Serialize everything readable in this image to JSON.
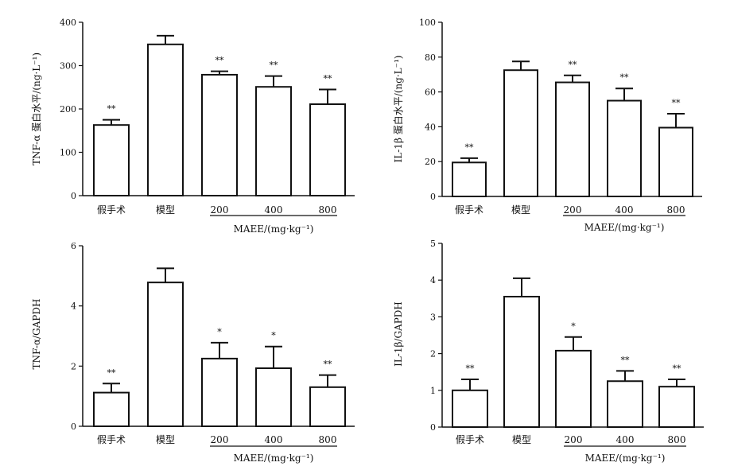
{
  "chart_data": [
    {
      "type": "bar",
      "ylabel": "TNF-α 蛋白水平/(ng·L⁻¹)",
      "ylim": [
        0,
        400
      ],
      "yticks": [
        0,
        100,
        200,
        300,
        400
      ],
      "categories": [
        "假手术",
        "模型",
        "200",
        "400",
        "800"
      ],
      "values": [
        163,
        349,
        279,
        251,
        211
      ],
      "errors": [
        12,
        20,
        8,
        25,
        34
      ],
      "significance": [
        "**",
        "",
        "**",
        "**",
        "**"
      ],
      "group_label": "MAEE/(mg·kg⁻¹)",
      "grid": false
    },
    {
      "type": "bar",
      "ylabel": "IL-1β 蛋白水平/(ng·L⁻¹)",
      "ylim": [
        0,
        100
      ],
      "yticks": [
        0,
        20,
        40,
        60,
        80,
        100
      ],
      "categories": [
        "假手术",
        "模型",
        "200",
        "400",
        "800"
      ],
      "values": [
        19.5,
        72.5,
        65.5,
        55,
        39.5
      ],
      "errors": [
        2.5,
        5,
        4,
        7,
        8
      ],
      "significance": [
        "**",
        "",
        "**",
        "**",
        "**"
      ],
      "group_label": "MAEE/(mg·kg⁻¹)",
      "grid": false
    },
    {
      "type": "bar",
      "ylabel": "TNF-α/GAPDH",
      "ylim": [
        0,
        6
      ],
      "yticks": [
        0,
        2,
        4,
        6
      ],
      "categories": [
        "假手术",
        "模型",
        "200",
        "400",
        "800"
      ],
      "values": [
        1.12,
        4.78,
        2.25,
        1.93,
        1.3
      ],
      "errors": [
        0.3,
        0.47,
        0.53,
        0.72,
        0.4
      ],
      "significance": [
        "**",
        "",
        "*",
        "*",
        "**"
      ],
      "group_label": "MAEE/(mg·kg⁻¹)",
      "grid": false
    },
    {
      "type": "bar",
      "ylabel": "IL-1β/GAPDH",
      "ylim": [
        0,
        5
      ],
      "yticks": [
        0,
        1,
        2,
        3,
        4,
        5
      ],
      "categories": [
        "假手术",
        "模型",
        "200",
        "400",
        "800"
      ],
      "values": [
        1.0,
        3.55,
        2.08,
        1.25,
        1.1
      ],
      "errors": [
        0.3,
        0.5,
        0.37,
        0.28,
        0.2
      ],
      "significance": [
        "**",
        "",
        "*",
        "**",
        "**"
      ],
      "group_label": "MAEE/(mg·kg⁻¹)",
      "grid": false
    }
  ]
}
